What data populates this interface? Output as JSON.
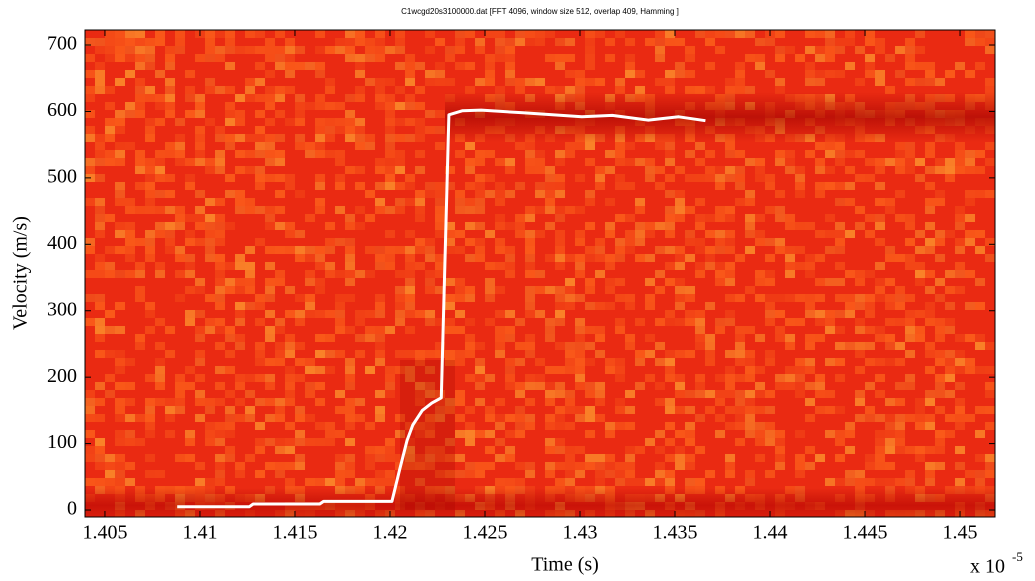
{
  "chart_data": {
    "type": "line",
    "title": "C1wcgd20s3100000.dat   [FFT 4096, window size 512, overlap 409,   Hamming ]",
    "x_label": "Time (s)",
    "y_label": "Velocity (m/s)",
    "x_multiplier": {
      "base": "x 10",
      "exponent": "-5"
    },
    "x": [
      1.4088,
      1.4126,
      1.4128,
      1.4163,
      1.4165,
      1.4201,
      1.4205,
      1.4209,
      1.4212,
      1.4217,
      1.4222,
      1.4227,
      1.4231,
      1.4238,
      1.4248,
      1.427,
      1.4301,
      1.4317,
      1.4336,
      1.4352,
      1.4366
    ],
    "series": [
      {
        "color": "#ffffff",
        "values": [
          5,
          5,
          9,
          9,
          13,
          13,
          60,
          105,
          128,
          150,
          161,
          169,
          595,
          601,
          602,
          598,
          592,
          594,
          587,
          592,
          586
        ]
      }
    ],
    "xlim": [
      1.40395,
      1.45184
    ],
    "xticks": [
      1.405,
      1.41,
      1.415,
      1.42,
      1.425,
      1.43,
      1.435,
      1.44,
      1.445,
      1.45
    ],
    "ylim": [
      -10.5,
      722.6
    ],
    "yticks": [
      0,
      100,
      200,
      300,
      400,
      500,
      600,
      700
    ]
  }
}
